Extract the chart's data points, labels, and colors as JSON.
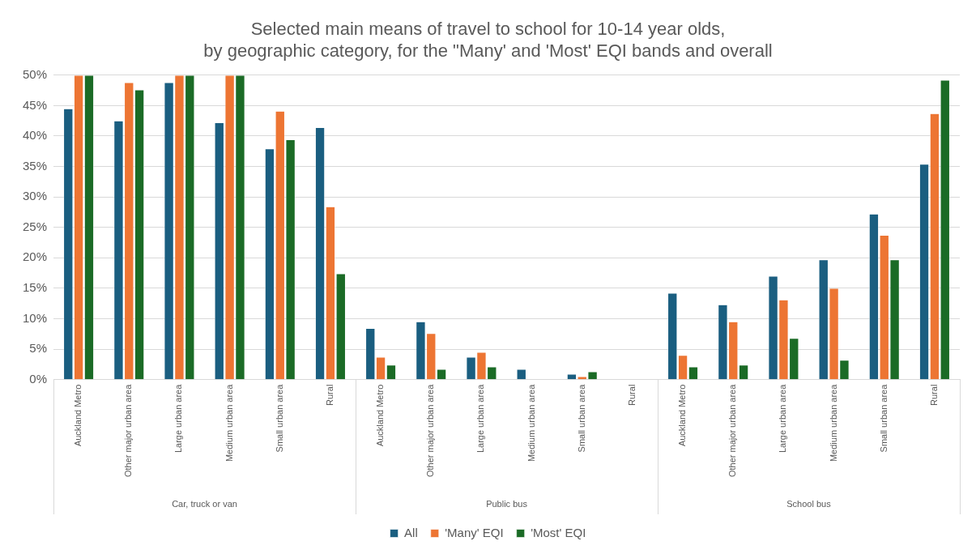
{
  "chart_data": {
    "type": "bar",
    "title": "Selected main means of travel to school for 10-14 year olds,\nby geographic category, for the \"Many' and 'Most' EQI bands and overall",
    "categories": [
      "Auckland Metro",
      "Other major urban area",
      "Large urban area",
      "Medium urban area",
      "Small urban area",
      "Rural",
      "Auckland Metro",
      "Other major urban area",
      "Large urban area",
      "Medium urban area",
      "Small urban area",
      "Rural",
      "Auckland Metro",
      "Other major urban area",
      "Large urban area",
      "Medium urban area",
      "Small urban area",
      "Rural"
    ],
    "series": [
      {
        "name": "All",
        "color": "#1a5e80",
        "values": [
          44.5,
          42.5,
          48.8,
          42.2,
          37.9,
          41.4,
          8.4,
          9.5,
          3.7,
          1.7,
          0.9,
          null,
          14.2,
          12.3,
          17.0,
          19.7,
          27.2,
          35.4
        ]
      },
      {
        "name": "'Many' EQI",
        "color": "#ed7533",
        "values": [
          50,
          48.8,
          50,
          50,
          44.1,
          28.4,
          3.7,
          7.6,
          4.5,
          null,
          0.5,
          null,
          4.0,
          9.5,
          13.1,
          15.0,
          23.7,
          43.7
        ]
      },
      {
        "name": "'Most' EQI",
        "color": "#1b6b26",
        "values": [
          50,
          47.6,
          50,
          50,
          39.4,
          17.4,
          2.4,
          1.7,
          2.1,
          null,
          1.3,
          null,
          2.1,
          2.4,
          6.8,
          3.2,
          19.7,
          49.2
        ]
      }
    ],
    "annotations": [
      "Car, truck or van",
      "Public bus",
      "School bus"
    ],
    "ylim": [
      0,
      50
    ],
    "yticks": [
      {
        "value": 0,
        "label": "0%"
      },
      {
        "value": 5,
        "label": "5%"
      },
      {
        "value": 10,
        "label": "10%"
      },
      {
        "value": 15,
        "label": "15%"
      },
      {
        "value": 20,
        "label": "20%"
      },
      {
        "value": 25,
        "label": "25%"
      },
      {
        "value": 30,
        "label": "30%"
      },
      {
        "value": 35,
        "label": "35%"
      },
      {
        "value": 40,
        "label": "40%"
      },
      {
        "value": 45,
        "label": "45%"
      },
      {
        "value": 50,
        "label": "50%"
      }
    ],
    "grid": "y",
    "legend": "bottom"
  }
}
